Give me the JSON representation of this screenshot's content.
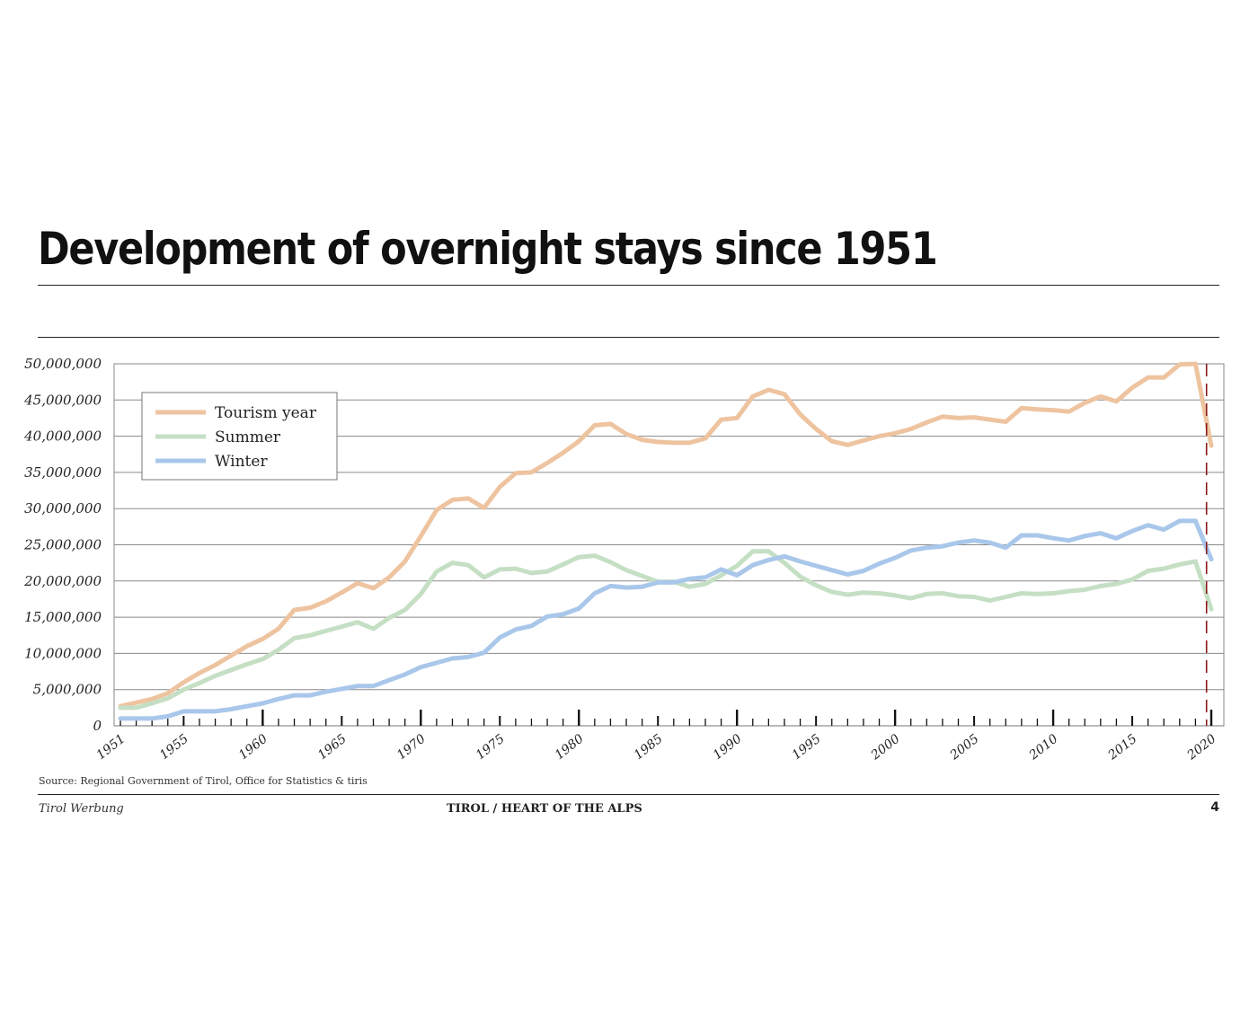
{
  "title": "Development of overnight stays since 1951",
  "source": "Source: Regional Government of Tirol, Office for Statistics & tiris",
  "footer": {
    "left": "Tirol Werbung",
    "center": "TIROL / HEART OF THE ALPS",
    "page": "4"
  },
  "chart_data": {
    "type": "line",
    "title": "",
    "xlabel": "",
    "ylabel": "",
    "xlim": [
      1951,
      2020
    ],
    "ylim": [
      0,
      50000000
    ],
    "y_ticks": [
      0,
      5000000,
      10000000,
      15000000,
      20000000,
      25000000,
      30000000,
      35000000,
      40000000,
      45000000,
      50000000
    ],
    "y_tick_labels": [
      "0",
      "5,000,000",
      "10,000,000",
      "15,000,000",
      "20,000,000",
      "25,000,000",
      "30,000,000",
      "35,000,000",
      "40,000,000",
      "45,000,000",
      "50,000,000"
    ],
    "x_tick_labels": [
      "1951",
      "1955",
      "1960",
      "1965",
      "1970",
      "1975",
      "1980",
      "1985",
      "1990",
      "1995",
      "2000",
      "2005",
      "2010",
      "2015",
      "2020"
    ],
    "grid": true,
    "legend_position": "top-left",
    "reference_line": {
      "x": 2019.7,
      "style": "dashed",
      "color": "#8b1a1a"
    },
    "x": [
      1951,
      1952,
      1953,
      1954,
      1955,
      1956,
      1957,
      1958,
      1959,
      1960,
      1961,
      1962,
      1963,
      1964,
      1965,
      1966,
      1967,
      1968,
      1969,
      1970,
      1971,
      1972,
      1973,
      1974,
      1975,
      1976,
      1977,
      1978,
      1979,
      1980,
      1981,
      1982,
      1983,
      1984,
      1985,
      1986,
      1987,
      1988,
      1989,
      1990,
      1991,
      1992,
      1993,
      1994,
      1995,
      1996,
      1997,
      1998,
      1999,
      2000,
      2001,
      2002,
      2003,
      2004,
      2005,
      2006,
      2007,
      2008,
      2009,
      2010,
      2011,
      2012,
      2013,
      2014,
      2015,
      2016,
      2017,
      2018,
      2019,
      2020
    ],
    "series": [
      {
        "name": "Tourism year",
        "color": "#eec4a0",
        "values": [
          2700000,
          3200000,
          3700000,
          4500000,
          6000000,
          7300000,
          8400000,
          9700000,
          11000000,
          12000000,
          13400000,
          16000000,
          16300000,
          17200000,
          18400000,
          19700000,
          19000000,
          20500000,
          22700000,
          26200000,
          29800000,
          31200000,
          31400000,
          30100000,
          33000000,
          34900000,
          35000000,
          36300000,
          37700000,
          39300000,
          41500000,
          41700000,
          40300000,
          39500000,
          39200000,
          39100000,
          39100000,
          39700000,
          42300000,
          42500000,
          45500000,
          46400000,
          45800000,
          43000000,
          41000000,
          39300000,
          38800000,
          39400000,
          40000000,
          40400000,
          41000000,
          41900000,
          42700000,
          42500000,
          42600000,
          42300000,
          42000000,
          43900000,
          43700000,
          43600000,
          43400000,
          44600000,
          45500000,
          44800000,
          46700000,
          48100000,
          48100000,
          49900000,
          50000000,
          38700000
        ]
      },
      {
        "name": "Summer",
        "color": "#c5dfc4",
        "values": [
          2500000,
          2500000,
          3100000,
          3800000,
          5000000,
          5900000,
          6900000,
          7700000,
          8500000,
          9200000,
          10500000,
          12100000,
          12500000,
          13100000,
          13700000,
          14300000,
          13400000,
          14900000,
          16000000,
          18200000,
          21300000,
          22500000,
          22200000,
          20500000,
          21600000,
          21700000,
          21100000,
          21300000,
          22300000,
          23300000,
          23500000,
          22600000,
          21500000,
          20700000,
          19900000,
          19900000,
          19200000,
          19600000,
          20800000,
          22100000,
          24100000,
          24100000,
          22500000,
          20600000,
          19400000,
          18500000,
          18100000,
          18400000,
          18300000,
          18000000,
          17600000,
          18200000,
          18300000,
          17900000,
          17800000,
          17300000,
          17800000,
          18300000,
          18200000,
          18300000,
          18600000,
          18800000,
          19300000,
          19600000,
          20200000,
          21400000,
          21700000,
          22300000,
          22700000,
          16100000
        ]
      },
      {
        "name": "Winter",
        "color": "#a9c7ea",
        "values": [
          1000000,
          1000000,
          1000000,
          1300000,
          2000000,
          2000000,
          2000000,
          2300000,
          2700000,
          3100000,
          3700000,
          4200000,
          4200000,
          4700000,
          5100000,
          5500000,
          5500000,
          6300000,
          7100000,
          8100000,
          8700000,
          9300000,
          9500000,
          10100000,
          12200000,
          13300000,
          13800000,
          15100000,
          15400000,
          16200000,
          18300000,
          19300000,
          19100000,
          19200000,
          19800000,
          19800000,
          20300000,
          20500000,
          21600000,
          20800000,
          22200000,
          22900000,
          23400000,
          22700000,
          22100000,
          21500000,
          20900000,
          21400000,
          22400000,
          23200000,
          24200000,
          24600000,
          24800000,
          25300000,
          25600000,
          25300000,
          24600000,
          26300000,
          26300000,
          25900000,
          25600000,
          26200000,
          26600000,
          25900000,
          26900000,
          27700000,
          27100000,
          28300000,
          28300000,
          23000000
        ]
      }
    ]
  }
}
